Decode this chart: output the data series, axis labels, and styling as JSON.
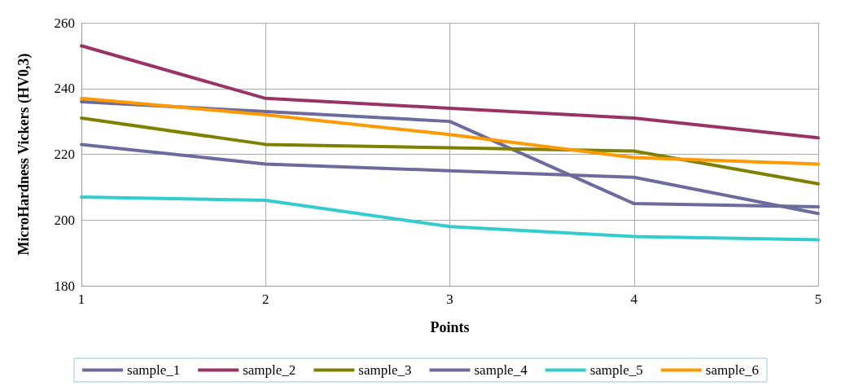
{
  "chart_data": {
    "type": "line",
    "xlabel": "Points",
    "ylabel": "MicroHardness Vickers (HV0,3)",
    "x": [
      1,
      2,
      3,
      4,
      5
    ],
    "xlim": [
      1,
      5
    ],
    "xticks": [
      1,
      2,
      3,
      4,
      5
    ],
    "ylim": [
      180,
      260
    ],
    "yticks": [
      180,
      200,
      220,
      240,
      260
    ],
    "grid": true,
    "legend": "bottom",
    "marker": "none",
    "line_style": "solid",
    "series": [
      {
        "name": "sample_1",
        "color": "#6b6b9e",
        "values": [
          236,
          233,
          230,
          205,
          204
        ]
      },
      {
        "name": "sample_2",
        "color": "#993366",
        "values": [
          253,
          237,
          234,
          231,
          225
        ]
      },
      {
        "name": "sample_3",
        "color": "#808000",
        "values": [
          231,
          223,
          222,
          221,
          211
        ]
      },
      {
        "name": "sample_4",
        "color": "#6b6b9e",
        "values": [
          223,
          217,
          215,
          213,
          202
        ]
      },
      {
        "name": "sample_5",
        "color": "#33cccc",
        "values": [
          207,
          206,
          198,
          195,
          194
        ]
      },
      {
        "name": "sample_6",
        "color": "#ff9900",
        "values": [
          237,
          232,
          226,
          219,
          217
        ]
      }
    ]
  }
}
